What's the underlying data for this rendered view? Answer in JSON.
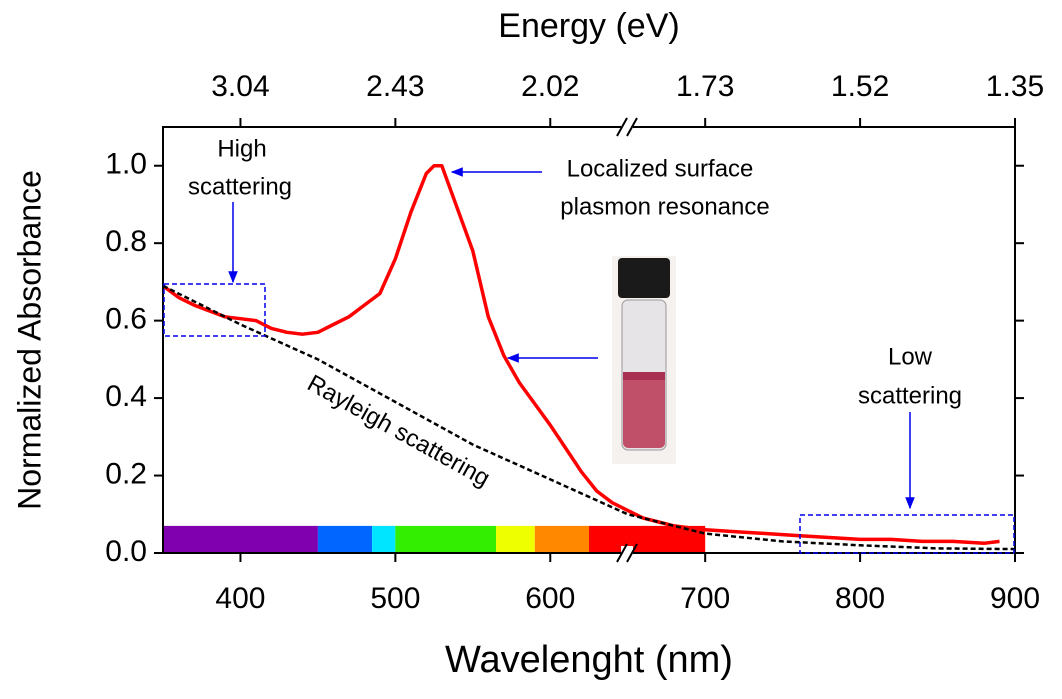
{
  "chart_data": {
    "type": "line",
    "title": "Energy (eV)",
    "xlabel": "Wavelenght (nm)",
    "ylabel": "Normalized Absorbance",
    "xlim": [
      350,
      900
    ],
    "ylim": [
      0,
      1.1
    ],
    "xticks": [
      400,
      500,
      600,
      700,
      800,
      900
    ],
    "yticks": [
      {
        "value": 0,
        "label": "0.0"
      },
      {
        "value": 0.2,
        "label": "0.2"
      },
      {
        "value": 0.4,
        "label": "0.4"
      },
      {
        "value": 0.6,
        "label": "0.6"
      },
      {
        "value": 0.8,
        "label": "0.8"
      },
      {
        "value": 1,
        "label": "1.0"
      }
    ],
    "x2ticks": [
      {
        "value": 400,
        "label": "3.04"
      },
      {
        "value": 500,
        "label": "2.43"
      },
      {
        "value": 600,
        "label": "2.02"
      },
      {
        "value": 700,
        "label": "1.73"
      },
      {
        "value": 800,
        "label": "1.52"
      },
      {
        "value": 900,
        "label": "1.35"
      }
    ],
    "series": [
      {
        "color": "#ff0000",
        "linestyle": "solid",
        "x": [
          350,
          360,
          370,
          380,
          390,
          400,
          410,
          420,
          430,
          440,
          450,
          460,
          470,
          480,
          490,
          500,
          510,
          520,
          525,
          530,
          540,
          550,
          560,
          570,
          580,
          590,
          600,
          610,
          620,
          630,
          640,
          650,
          660,
          670,
          680,
          690,
          700,
          720,
          740,
          760,
          780,
          800,
          820,
          840,
          860,
          880,
          890
        ],
        "values": [
          0.69,
          0.66,
          0.64,
          0.625,
          0.61,
          0.605,
          0.6,
          0.58,
          0.57,
          0.565,
          0.57,
          0.59,
          0.61,
          0.64,
          0.67,
          0.76,
          0.88,
          0.98,
          1.0,
          1.0,
          0.89,
          0.78,
          0.61,
          0.51,
          0.44,
          0.385,
          0.33,
          0.27,
          0.21,
          0.16,
          0.13,
          0.11,
          0.09,
          0.08,
          0.07,
          0.065,
          0.06,
          0.055,
          0.05,
          0.045,
          0.04,
          0.035,
          0.035,
          0.03,
          0.03,
          0.025,
          0.03
        ]
      },
      {
        "color": "#000000",
        "linestyle": "dashed",
        "x": [
          350,
          400,
          450,
          500,
          550,
          600,
          650,
          700,
          750,
          800,
          850,
          900
        ],
        "values": [
          0.69,
          0.59,
          0.5,
          0.39,
          0.28,
          0.19,
          0.1,
          0.05,
          0.03,
          0.02,
          0.012,
          0.01
        ]
      }
    ],
    "spectrum": [
      {
        "from": 350,
        "to": 450,
        "color": "#8000b0"
      },
      {
        "from": 450,
        "to": 485,
        "color": "#0066ff"
      },
      {
        "from": 485,
        "to": 500,
        "color": "#00e5ff"
      },
      {
        "from": 500,
        "to": 565,
        "color": "#33ee00"
      },
      {
        "from": 565,
        "to": 590,
        "color": "#eeff00"
      },
      {
        "from": 590,
        "to": 625,
        "color": "#ff8800"
      },
      {
        "from": 625,
        "to": 700,
        "color": "#ff0000"
      }
    ],
    "spectrum_height": 0.07,
    "annotations": {
      "high": [
        "High",
        "scattering"
      ],
      "lspr": [
        "Localized surface",
        "plasmon resonance"
      ],
      "low": [
        "Low",
        "scattering"
      ],
      "rayleigh": "Rayleigh scattering"
    }
  }
}
